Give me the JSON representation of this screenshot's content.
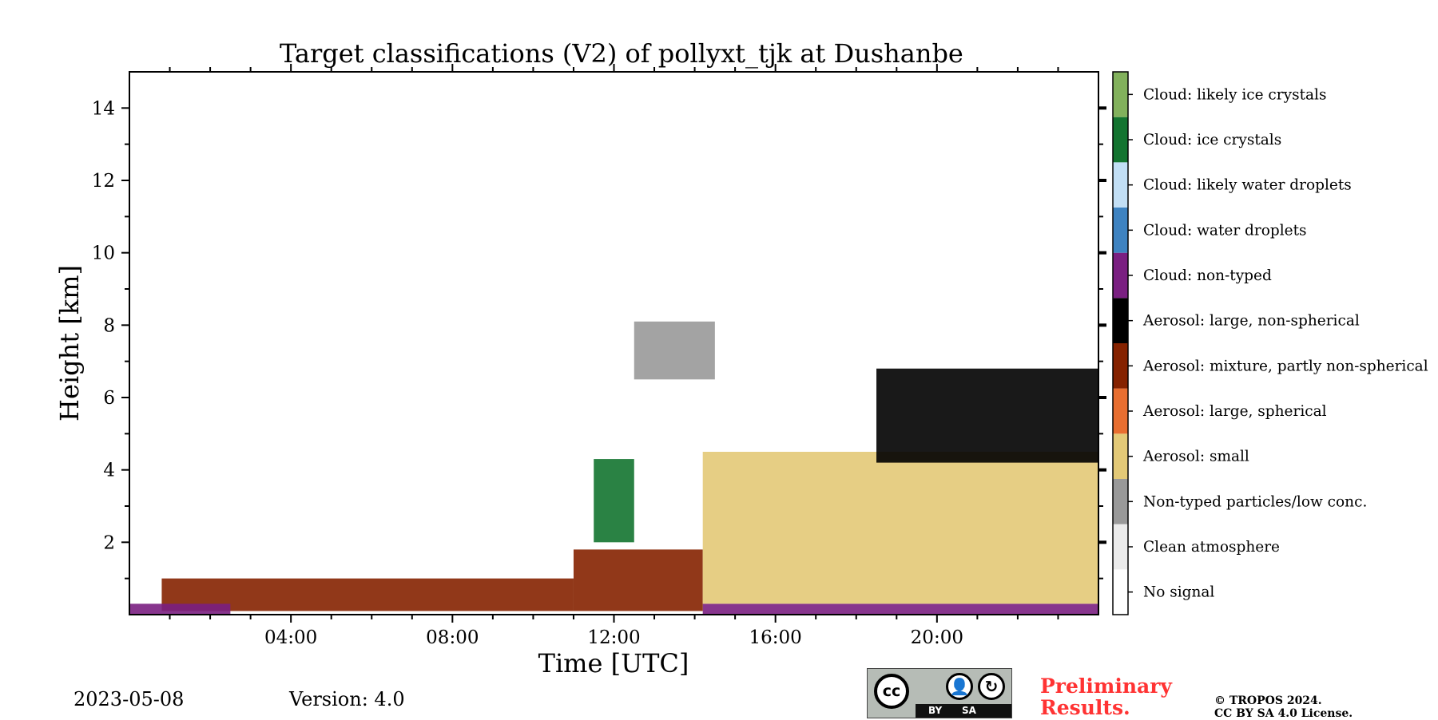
{
  "chart_data": {
    "type": "heatmap",
    "title": "Target classifications (V2) of pollyxt_tjk at Dushanbe",
    "xlabel": "Time [UTC]",
    "ylabel": "Height [km]",
    "xlim": [
      0,
      24
    ],
    "ylim": [
      0,
      15
    ],
    "xticks": [
      {
        "value": 4,
        "label": "04:00"
      },
      {
        "value": 8,
        "label": "08:00"
      },
      {
        "value": 12,
        "label": "12:00"
      },
      {
        "value": 16,
        "label": "16:00"
      },
      {
        "value": 20,
        "label": "20:00"
      }
    ],
    "yticks": [
      {
        "value": 2,
        "label": "2"
      },
      {
        "value": 4,
        "label": "4"
      },
      {
        "value": 6,
        "label": "6"
      },
      {
        "value": 8,
        "label": "8"
      },
      {
        "value": 10,
        "label": "10"
      },
      {
        "value": 12,
        "label": "12"
      },
      {
        "value": 14,
        "label": "14"
      }
    ],
    "classes": [
      {
        "label": "No signal",
        "color": "#ffffff"
      },
      {
        "label": "Clean atmosphere",
        "color": "#ebebeb"
      },
      {
        "label": "Non-typed particles/low conc.",
        "color": "#999999"
      },
      {
        "label": "Aerosol: small",
        "color": "#e3c977"
      },
      {
        "label": "Aerosol: large, spherical",
        "color": "#e86e30"
      },
      {
        "label": "Aerosol: mixture, partly non-spherical",
        "color": "#852200"
      },
      {
        "label": "Aerosol: large, non-spherical",
        "color": "#000000"
      },
      {
        "label": "Cloud: non-typed",
        "color": "#7a1f81"
      },
      {
        "label": "Cloud: water droplets",
        "color": "#3e83c1"
      },
      {
        "label": "Cloud: likely water droplets",
        "color": "#c2dff5"
      },
      {
        "label": "Cloud: ice crystals",
        "color": "#137430"
      },
      {
        "label": "Cloud: likely ice crystals",
        "color": "#82b15c"
      }
    ],
    "regions": [
      {
        "class": "Aerosol: mixture, partly non-spherical",
        "t_start": 0.8,
        "t_end": 11.0,
        "h_bottom": 0.1,
        "h_top": 1.0
      },
      {
        "class": "Cloud: non-typed",
        "t_start": 0.0,
        "t_end": 2.5,
        "h_bottom": 0.0,
        "h_top": 0.3
      },
      {
        "class": "Cloud: non-typed",
        "t_start": 14.2,
        "t_end": 24.0,
        "h_bottom": 0.0,
        "h_top": 0.3
      },
      {
        "class": "Aerosol: mixture, partly non-spherical",
        "t_start": 11.0,
        "t_end": 14.2,
        "h_bottom": 0.1,
        "h_top": 1.8
      },
      {
        "class": "Aerosol: small",
        "t_start": 14.2,
        "t_end": 24.0,
        "h_bottom": 0.3,
        "h_top": 4.5
      },
      {
        "class": "Aerosol: large, non-spherical",
        "t_start": 18.5,
        "t_end": 24.0,
        "h_bottom": 4.2,
        "h_top": 6.8
      },
      {
        "class": "Cloud: ice crystals",
        "t_start": 11.5,
        "t_end": 12.5,
        "h_bottom": 2.0,
        "h_top": 4.3
      },
      {
        "class": "Non-typed particles/low conc.",
        "t_start": 12.5,
        "t_end": 14.5,
        "h_bottom": 6.5,
        "h_top": 8.1
      }
    ]
  },
  "footer": {
    "date": "2023-05-08",
    "version": "Version: 4.0",
    "preliminary": "Preliminary Results.",
    "copyright_line1": "© TROPOS 2024.",
    "copyright_line2": "CC BY SA 4.0 License.",
    "license_badge": {
      "cc": "cc",
      "by": "BY",
      "sa": "SA"
    }
  }
}
